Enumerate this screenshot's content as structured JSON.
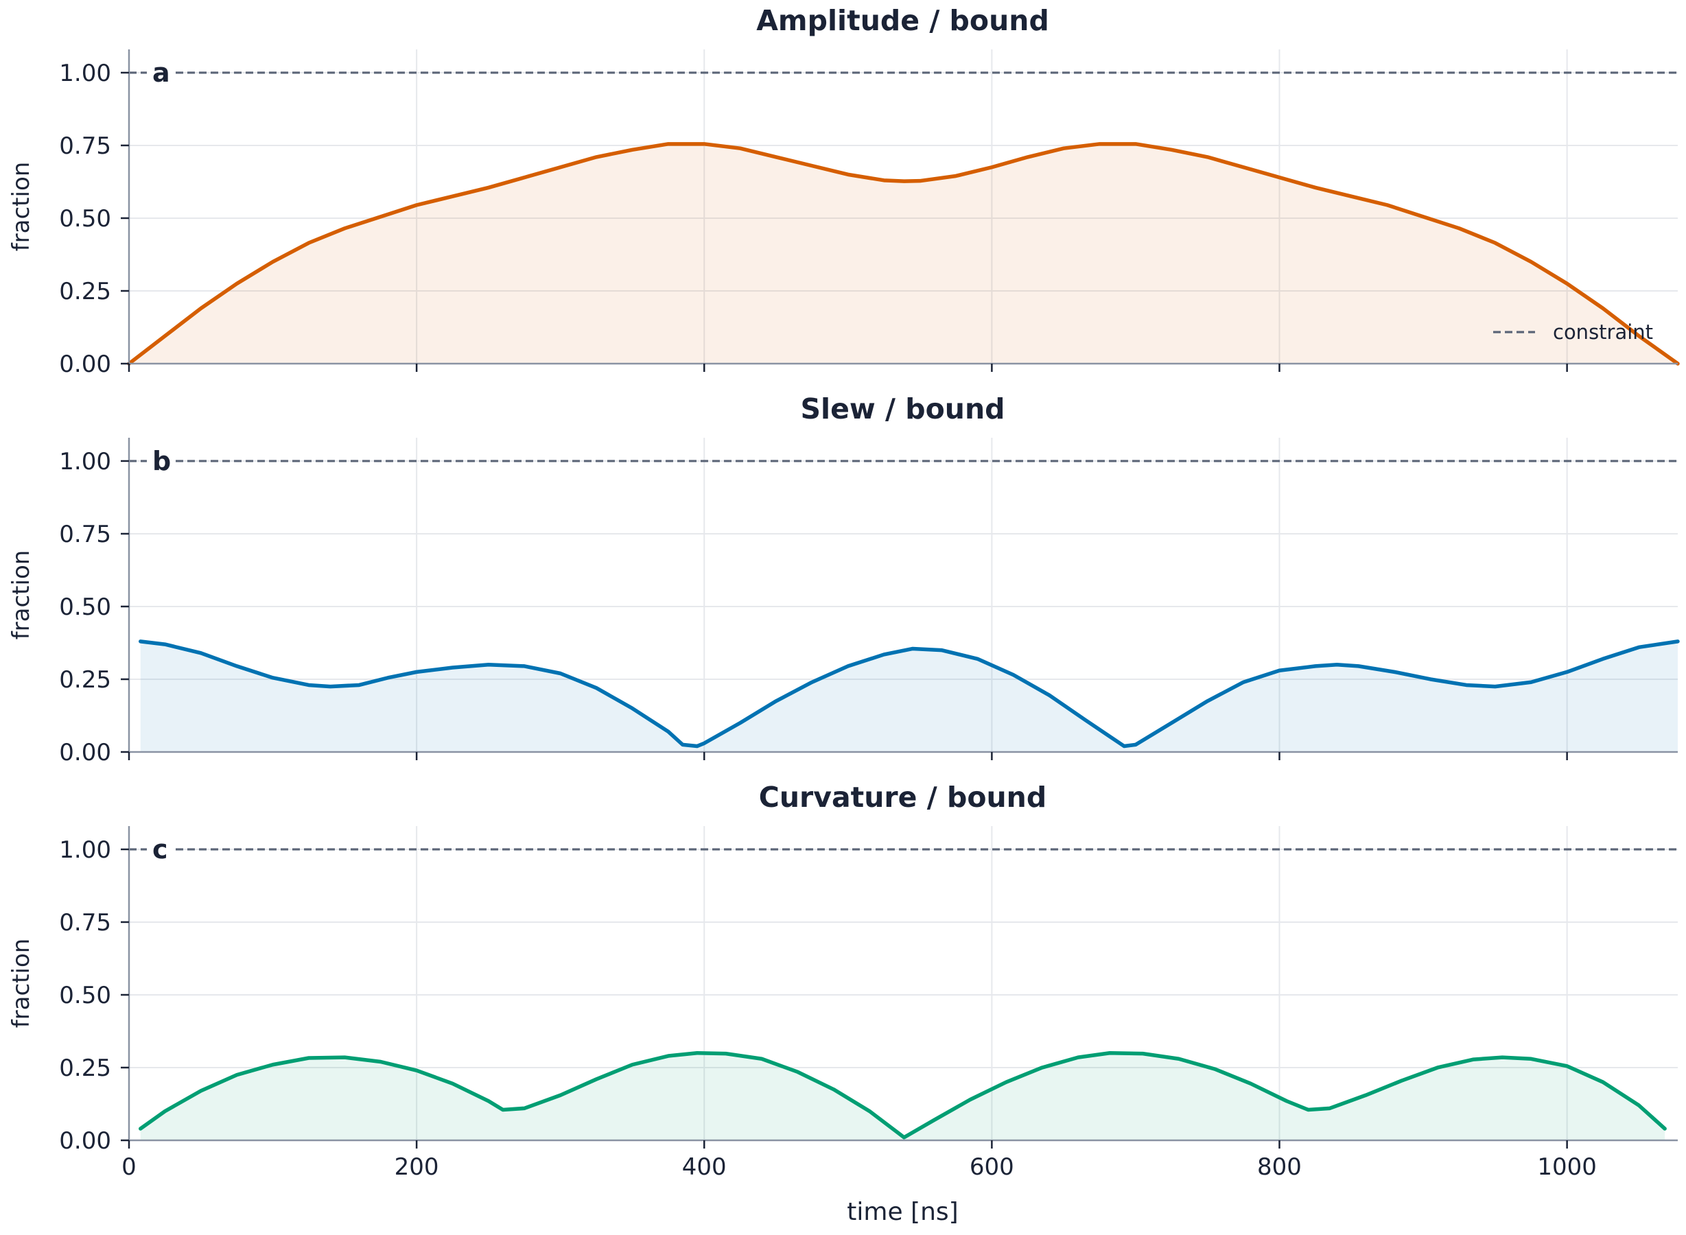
{
  "chart_data": [
    {
      "type": "area",
      "panel_letter": "a",
      "title": "Amplitude / bound",
      "ylabel": "fraction",
      "xlabel": "",
      "xlim": [
        0,
        1077
      ],
      "ylim": [
        0,
        1.08
      ],
      "xticks": [
        0,
        200,
        400,
        600,
        800,
        1000
      ],
      "yticks": [
        0.0,
        0.25,
        0.5,
        0.75,
        1.0
      ],
      "ytick_labels": [
        "0.00",
        "0.25",
        "0.50",
        "0.75",
        "1.00"
      ],
      "show_xtick_labels": false,
      "grid": true,
      "color": "#d55e00",
      "constraint": 1.0,
      "legend": {
        "entries": [
          "constraint"
        ],
        "placement": "lower-right"
      },
      "x": [
        0,
        25,
        50,
        75,
        100,
        125,
        150,
        175,
        200,
        225,
        250,
        275,
        300,
        325,
        350,
        375,
        400,
        425,
        450,
        475,
        500,
        525,
        539,
        550,
        575,
        600,
        625,
        650,
        675,
        700,
        725,
        750,
        775,
        800,
        825,
        850,
        875,
        900,
        925,
        950,
        975,
        1000,
        1025,
        1050,
        1077
      ],
      "values": [
        0.0,
        0.095,
        0.19,
        0.275,
        0.35,
        0.415,
        0.465,
        0.505,
        0.545,
        0.575,
        0.605,
        0.64,
        0.675,
        0.71,
        0.735,
        0.755,
        0.755,
        0.74,
        0.71,
        0.68,
        0.65,
        0.63,
        0.627,
        0.628,
        0.645,
        0.675,
        0.71,
        0.74,
        0.755,
        0.755,
        0.735,
        0.71,
        0.675,
        0.64,
        0.605,
        0.575,
        0.545,
        0.505,
        0.465,
        0.415,
        0.35,
        0.275,
        0.19,
        0.095,
        0.0
      ]
    },
    {
      "type": "area",
      "panel_letter": "b",
      "title": "Slew / bound",
      "ylabel": "fraction",
      "xlabel": "",
      "xlim": [
        0,
        1077
      ],
      "ylim": [
        0,
        1.08
      ],
      "xticks": [
        0,
        200,
        400,
        600,
        800,
        1000
      ],
      "yticks": [
        0.0,
        0.25,
        0.5,
        0.75,
        1.0
      ],
      "ytick_labels": [
        "0.00",
        "0.25",
        "0.50",
        "0.75",
        "1.00"
      ],
      "show_xtick_labels": false,
      "grid": true,
      "color": "#0072b2",
      "constraint": 1.0,
      "x": [
        8,
        25,
        50,
        75,
        100,
        125,
        140,
        160,
        180,
        200,
        225,
        250,
        275,
        300,
        325,
        350,
        375,
        385,
        395,
        400,
        425,
        450,
        475,
        500,
        525,
        545,
        565,
        590,
        615,
        640,
        665,
        683,
        692,
        700,
        725,
        750,
        775,
        800,
        825,
        840,
        855,
        880,
        905,
        930,
        950,
        975,
        1000,
        1025,
        1050,
        1077
      ],
      "values": [
        0.38,
        0.37,
        0.34,
        0.295,
        0.255,
        0.23,
        0.225,
        0.23,
        0.255,
        0.275,
        0.29,
        0.3,
        0.295,
        0.27,
        0.22,
        0.15,
        0.07,
        0.025,
        0.02,
        0.03,
        0.1,
        0.175,
        0.24,
        0.295,
        0.335,
        0.355,
        0.35,
        0.32,
        0.265,
        0.195,
        0.11,
        0.05,
        0.02,
        0.025,
        0.1,
        0.175,
        0.24,
        0.28,
        0.295,
        0.3,
        0.295,
        0.275,
        0.25,
        0.23,
        0.225,
        0.24,
        0.275,
        0.32,
        0.36,
        0.38
      ]
    },
    {
      "type": "area",
      "panel_letter": "c",
      "title": "Curvature / bound",
      "ylabel": "fraction",
      "xlabel": "time [ns]",
      "xlim": [
        0,
        1077
      ],
      "ylim": [
        0,
        1.08
      ],
      "xticks": [
        0,
        200,
        400,
        600,
        800,
        1000
      ],
      "xtick_labels": [
        "0",
        "200",
        "400",
        "600",
        "800",
        "1000"
      ],
      "yticks": [
        0.0,
        0.25,
        0.5,
        0.75,
        1.0
      ],
      "ytick_labels": [
        "0.00",
        "0.25",
        "0.50",
        "0.75",
        "1.00"
      ],
      "show_xtick_labels": true,
      "grid": true,
      "color": "#009e73",
      "constraint": 1.0,
      "x": [
        8,
        25,
        50,
        75,
        100,
        125,
        150,
        175,
        200,
        225,
        250,
        260,
        275,
        300,
        325,
        350,
        375,
        395,
        415,
        440,
        465,
        490,
        515,
        539,
        560,
        585,
        610,
        635,
        660,
        682,
        705,
        730,
        755,
        780,
        805,
        820,
        835,
        860,
        885,
        910,
        935,
        955,
        975,
        1000,
        1025,
        1050,
        1068
      ],
      "values": [
        0.04,
        0.1,
        0.17,
        0.225,
        0.26,
        0.283,
        0.285,
        0.27,
        0.24,
        0.195,
        0.135,
        0.105,
        0.11,
        0.155,
        0.21,
        0.26,
        0.29,
        0.3,
        0.298,
        0.28,
        0.235,
        0.175,
        0.1,
        0.01,
        0.07,
        0.14,
        0.2,
        0.25,
        0.285,
        0.3,
        0.298,
        0.28,
        0.245,
        0.195,
        0.135,
        0.105,
        0.11,
        0.155,
        0.205,
        0.25,
        0.278,
        0.285,
        0.28,
        0.255,
        0.2,
        0.12,
        0.04
      ]
    }
  ],
  "legend_label": "constraint"
}
